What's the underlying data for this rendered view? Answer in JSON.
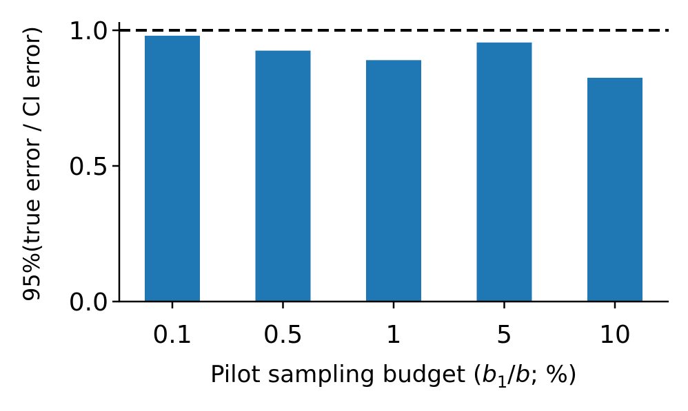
{
  "chart_data": {
    "type": "bar",
    "categories": [
      "0.1",
      "0.5",
      "1",
      "5",
      "10"
    ],
    "values": [
      0.98,
      0.925,
      0.89,
      0.955,
      0.825
    ],
    "reference_line": {
      "y": 1.0,
      "style": "dashed"
    },
    "xlabel": {
      "prefix": "Pilot sampling budget (",
      "b": "b",
      "sub": "1",
      "slash": "/",
      "b2": "b",
      "suffix": "; %)"
    },
    "ylabel": "95%(true error / CI error)",
    "ylim": [
      0,
      1.0
    ],
    "yticks": [
      "0.0",
      "0.5",
      "1.0"
    ],
    "ytick_values": [
      0,
      0.5,
      1.0
    ],
    "grid": false,
    "bar_color": "#1f77b4"
  }
}
